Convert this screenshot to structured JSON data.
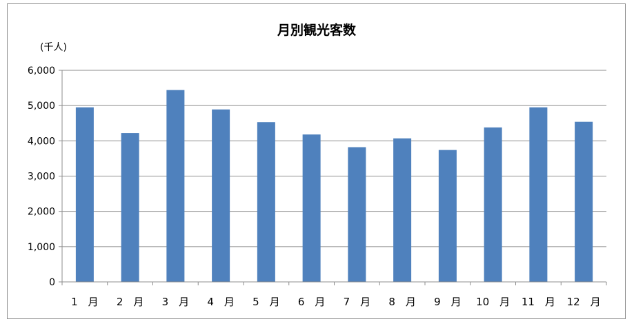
{
  "chart_data": {
    "type": "bar",
    "title": "月別観光客数",
    "unit_label": "(千人)",
    "categories": [
      "1　月",
      "2　月",
      "3　月",
      "4　月",
      "5　月",
      "6　月",
      "7　月",
      "8　月",
      "9　月",
      "10　月",
      "11　月",
      "12　月"
    ],
    "values": [
      4950,
      4220,
      5440,
      4890,
      4530,
      4180,
      3820,
      4070,
      3740,
      4380,
      4950,
      4540
    ],
    "yticks": [
      "0",
      "1,000",
      "2,000",
      "3,000",
      "4,000",
      "5,000",
      "6,000"
    ],
    "ylim": [
      0,
      6000
    ],
    "grid": true,
    "bar_color": "#4f81bd",
    "legend": "none"
  }
}
